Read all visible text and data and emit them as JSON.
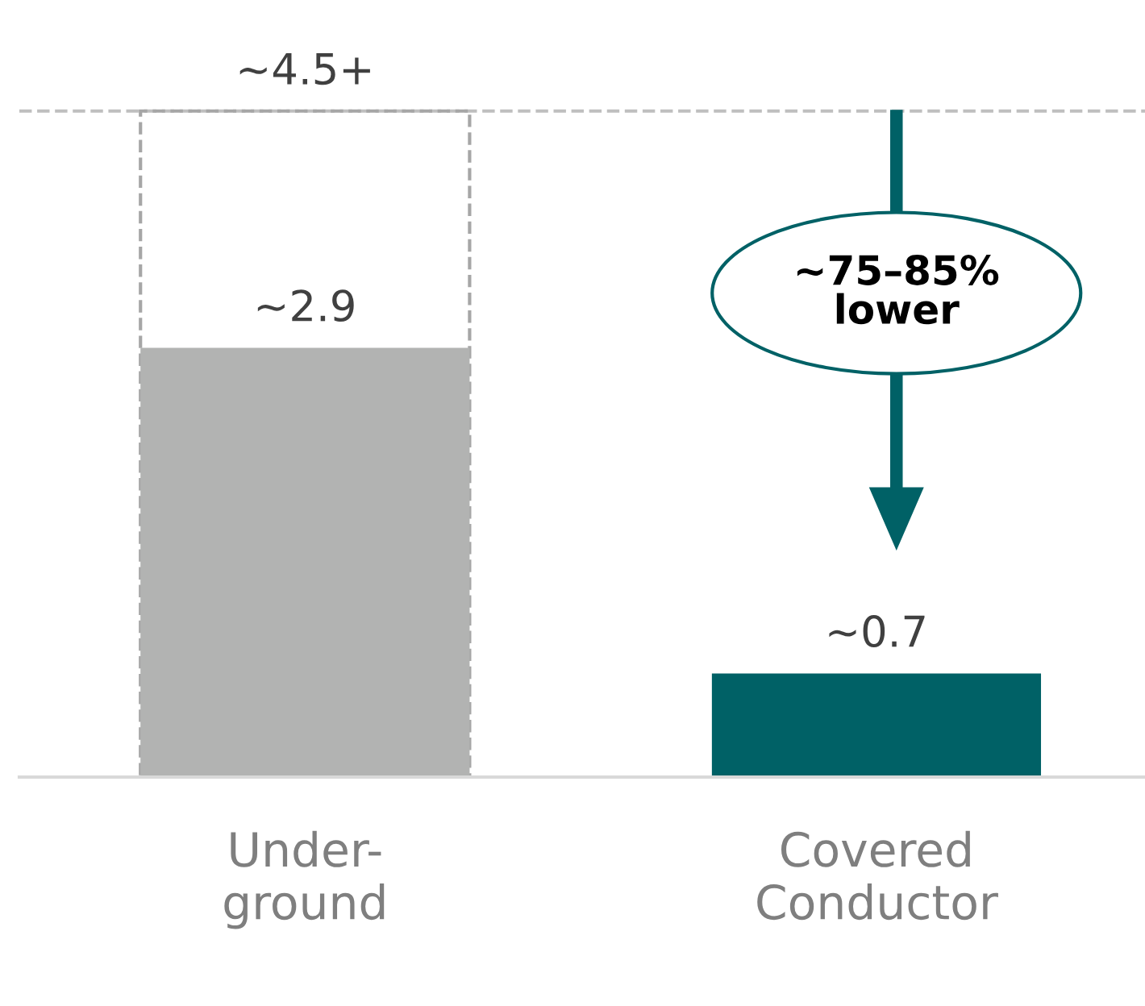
{
  "chart_data": {
    "type": "bar",
    "categories": [
      "Under-\nground",
      "Covered\nConductor"
    ],
    "series": [
      {
        "colors": [
          "#b2b3b2",
          "#006166"
        ],
        "values": [
          2.9,
          0.7
        ],
        "value_labels": [
          "~2.9",
          "~0.7"
        ]
      },
      {
        "color": "#a6a6a6",
        "values": [
          4.5,
          null
        ],
        "value_labels": [
          "~4.5+",
          null
        ],
        "line_style": "dashed"
      }
    ],
    "tick_labels": "x",
    "grid": false,
    "ref_lines": [
      {
        "axis": "y",
        "value": 4.5,
        "color": "#bfbfbf",
        "line_style": "dashed"
      }
    ],
    "annotations": [
      "~75–85%\nlower"
    ]
  }
}
